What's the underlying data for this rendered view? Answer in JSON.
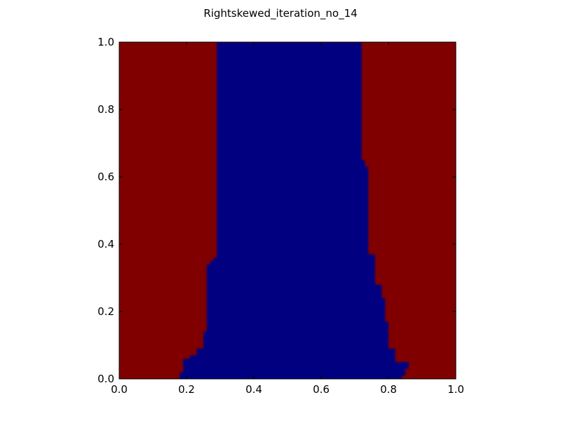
{
  "chart_data": {
    "type": "heatmap",
    "title": "Rightskewed_iteration_no_14",
    "xlabel": "",
    "ylabel": "",
    "xlim": [
      0.0,
      1.0
    ],
    "ylim": [
      0.0,
      1.0
    ],
    "x_ticks": [
      "0.0",
      "0.2",
      "0.4",
      "0.6",
      "0.8",
      "1.0"
    ],
    "y_ticks": [
      "0.0",
      "0.2",
      "0.4",
      "0.6",
      "0.8",
      "1.0"
    ],
    "grid": false,
    "colors": {
      "outer_region": "#800000",
      "inner_region": "#000080",
      "axes": "#000000"
    },
    "regions": [
      {
        "label": "outer",
        "color": "#800000"
      },
      {
        "label": "inner",
        "color": "#000080",
        "left_boundary": [
          {
            "y": 0.0,
            "x": 0.16
          },
          {
            "y": 0.02,
            "x": 0.18
          },
          {
            "y": 0.06,
            "x": 0.19
          },
          {
            "y": 0.07,
            "x": 0.21
          },
          {
            "y": 0.09,
            "x": 0.23
          },
          {
            "y": 0.12,
            "x": 0.25
          },
          {
            "y": 0.14,
            "x": 0.25
          },
          {
            "y": 0.34,
            "x": 0.26
          },
          {
            "y": 0.35,
            "x": 0.27
          },
          {
            "y": 0.36,
            "x": 0.28
          },
          {
            "y": 1.0,
            "x": 0.29
          }
        ],
        "right_boundary": [
          {
            "y": 1.0,
            "x": 0.71
          },
          {
            "y": 0.65,
            "x": 0.72
          },
          {
            "y": 0.63,
            "x": 0.73
          },
          {
            "y": 0.37,
            "x": 0.74
          },
          {
            "y": 0.28,
            "x": 0.76
          },
          {
            "y": 0.24,
            "x": 0.78
          },
          {
            "y": 0.17,
            "x": 0.79
          },
          {
            "y": 0.09,
            "x": 0.8
          },
          {
            "y": 0.05,
            "x": 0.82
          },
          {
            "y": 0.03,
            "x": 0.86
          },
          {
            "y": 0.01,
            "x": 0.85
          },
          {
            "y": 0.0,
            "x": 0.84
          }
        ]
      }
    ]
  }
}
